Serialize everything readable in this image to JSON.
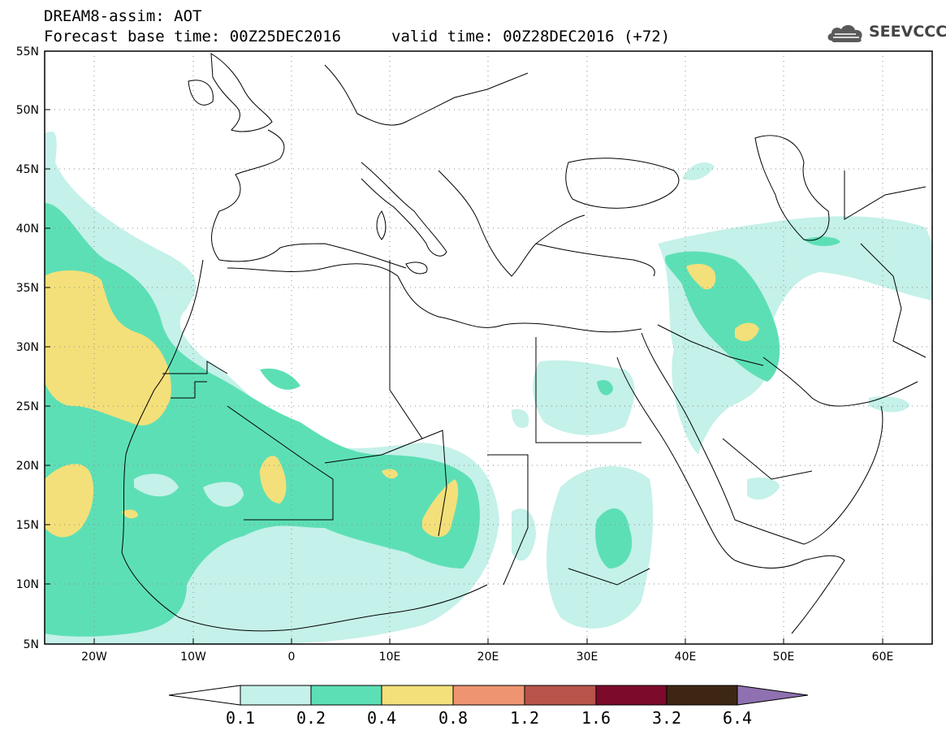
{
  "header": {
    "line1": "DREAM8-assim: AOT",
    "line2_left": "Forecast base time: 00Z25DEC2016",
    "line2_right": "valid time: 00Z28DEC2016 (+72)",
    "logo_text": "SEEVCCC"
  },
  "map": {
    "lat_labels": [
      "55N",
      "50N",
      "45N",
      "40N",
      "35N",
      "30N",
      "25N",
      "20N",
      "15N",
      "10N",
      "5N"
    ],
    "lon_labels": [
      "20W",
      "10W",
      "0",
      "10E",
      "20E",
      "30E",
      "40E",
      "50E",
      "60E"
    ],
    "grid": true
  },
  "colorbar": {
    "colors": [
      "#c4f1e9",
      "#5ddfb5",
      "#f3e07a",
      "#ee9470",
      "#b8544a",
      "#7c0a2b",
      "#3d2714",
      "#8f70b0"
    ],
    "labels": [
      "0.1",
      "0.2",
      "0.4",
      "0.8",
      "1.2",
      "1.6",
      "3.2",
      "6.4"
    ]
  }
}
